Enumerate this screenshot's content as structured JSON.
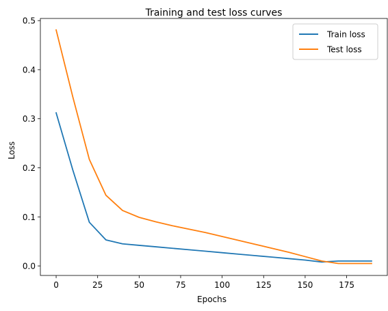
{
  "chart_data": {
    "type": "line",
    "title": "Training and test loss curves",
    "xlabel": "Epochs",
    "ylabel": "Loss",
    "xlim": [
      -9.5,
      199.5
    ],
    "ylim": [
      -0.0194,
      0.5044
    ],
    "xticks": [
      0,
      25,
      50,
      75,
      100,
      125,
      150,
      175
    ],
    "yticks": [
      0.0,
      0.1,
      0.2,
      0.3,
      0.4,
      0.5
    ],
    "xtick_labels": [
      "0",
      "25",
      "50",
      "75",
      "100",
      "125",
      "150",
      "175"
    ],
    "ytick_labels": [
      "0.0",
      "0.1",
      "0.2",
      "0.3",
      "0.4",
      "0.5"
    ],
    "grid": false,
    "legend": "top-right",
    "x": [
      0,
      10,
      20,
      30,
      40,
      50,
      60,
      70,
      80,
      90,
      100,
      110,
      120,
      130,
      140,
      150,
      160,
      170,
      180,
      190
    ],
    "series": [
      {
        "name": "Train loss",
        "color": "#1f77b4",
        "values": [
          0.312,
          0.196,
          0.089,
          0.053,
          0.045,
          0.042,
          0.039,
          0.036,
          0.033,
          0.03,
          0.027,
          0.024,
          0.021,
          0.018,
          0.015,
          0.012,
          0.008,
          0.01,
          0.01,
          0.01
        ]
      },
      {
        "name": "Test loss",
        "color": "#ff7f0e",
        "values": [
          0.481,
          0.345,
          0.217,
          0.144,
          0.113,
          0.099,
          0.09,
          0.082,
          0.075,
          0.068,
          0.06,
          0.052,
          0.044,
          0.036,
          0.028,
          0.019,
          0.01,
          0.005,
          0.005,
          0.005
        ]
      }
    ]
  }
}
